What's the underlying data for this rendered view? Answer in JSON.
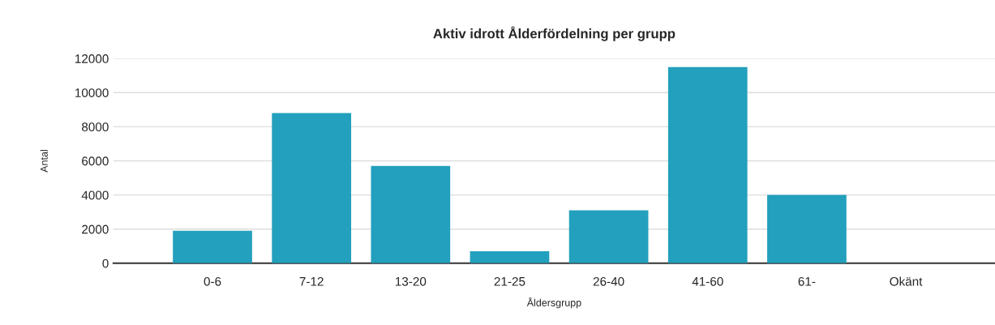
{
  "chart_data": {
    "type": "bar",
    "title": "Aktiv idrott Ålderfördelning per grupp",
    "xlabel": "Åldersgrupp",
    "ylabel": "Antal",
    "categories": [
      "0-6",
      "7-12",
      "13-20",
      "21-25",
      "26-40",
      "41-60",
      "61-",
      "Okänt"
    ],
    "values": [
      1900,
      8800,
      5700,
      700,
      3100,
      11500,
      4000,
      0
    ],
    "color": "#23a0bd",
    "ylim": [
      0,
      12000
    ],
    "yticks": [
      0,
      2000,
      4000,
      6000,
      8000,
      10000,
      12000
    ],
    "grid": "y",
    "legend": false
  }
}
